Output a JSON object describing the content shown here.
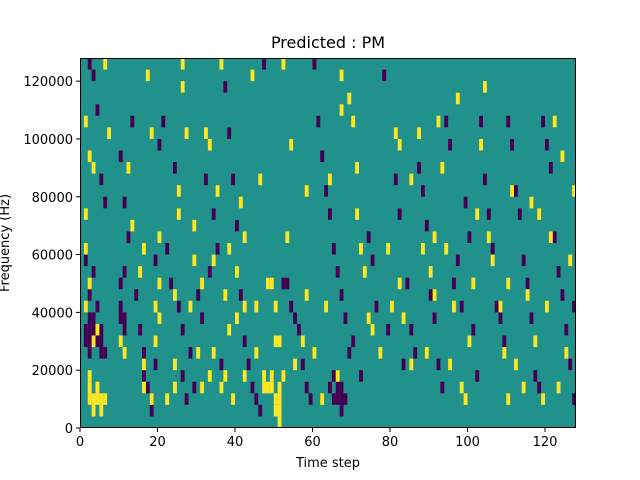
{
  "chart_data": {
    "type": "heatmap",
    "title": "Predicted : PM",
    "xlabel": "Time step",
    "ylabel": "Frequency (Hz)",
    "xlim": [
      0,
      128
    ],
    "ylim": [
      0,
      128000
    ],
    "x_ticks": [
      0,
      20,
      40,
      60,
      80,
      100,
      120
    ],
    "y_ticks": [
      0,
      20000,
      40000,
      60000,
      80000,
      100000,
      120000
    ],
    "x_tick_labels": [
      "0",
      "20",
      "40",
      "60",
      "80",
      "100",
      "120"
    ],
    "y_tick_labels": [
      "0",
      "20000",
      "40000",
      "60000",
      "80000",
      "100000",
      "120000"
    ],
    "grid": false,
    "colormap": "viridis",
    "background_value": 0.5,
    "cell_width": 1,
    "cell_height": 4000,
    "colors": {
      "low": "#440154",
      "mid": "#21918c",
      "high": "#fde725"
    },
    "cells_high": [
      [
        2,
        12000
      ],
      [
        2,
        8000
      ],
      [
        3,
        8000
      ],
      [
        3,
        4000
      ],
      [
        4,
        8000
      ],
      [
        4,
        12000
      ],
      [
        5,
        8000
      ],
      [
        5,
        4000
      ],
      [
        6,
        8000
      ],
      [
        2,
        16000
      ],
      [
        6,
        124000
      ],
      [
        7,
        100000
      ],
      [
        1,
        104000
      ],
      [
        2,
        92000
      ],
      [
        3,
        88000
      ],
      [
        1,
        72000
      ],
      [
        1,
        60000
      ],
      [
        2,
        48000
      ],
      [
        1,
        40000
      ],
      [
        3,
        28000
      ],
      [
        4,
        32000
      ],
      [
        10,
        28000
      ],
      [
        11,
        24000
      ],
      [
        12,
        88000
      ],
      [
        13,
        68000
      ],
      [
        15,
        52000
      ],
      [
        16,
        60000
      ],
      [
        16,
        20000
      ],
      [
        16,
        12000
      ],
      [
        17,
        120000
      ],
      [
        18,
        100000
      ],
      [
        18,
        8000
      ],
      [
        19,
        40000
      ],
      [
        19,
        28000
      ],
      [
        20,
        64000
      ],
      [
        20,
        48000
      ],
      [
        20,
        36000
      ],
      [
        22,
        8000
      ],
      [
        24,
        44000
      ],
      [
        24,
        20000
      ],
      [
        24,
        12000
      ],
      [
        25,
        80000
      ],
      [
        25,
        72000
      ],
      [
        26,
        124000
      ],
      [
        26,
        116000
      ],
      [
        27,
        100000
      ],
      [
        28,
        40000
      ],
      [
        29,
        68000
      ],
      [
        29,
        56000
      ],
      [
        30,
        24000
      ],
      [
        31,
        48000
      ],
      [
        31,
        12000
      ],
      [
        32,
        100000
      ],
      [
        33,
        96000
      ],
      [
        33,
        16000
      ],
      [
        34,
        56000
      ],
      [
        34,
        24000
      ],
      [
        35,
        80000
      ],
      [
        36,
        124000
      ],
      [
        36,
        12000
      ],
      [
        37,
        44000
      ],
      [
        37,
        16000
      ],
      [
        38,
        60000
      ],
      [
        38,
        32000
      ],
      [
        39,
        8000
      ],
      [
        40,
        52000
      ],
      [
        40,
        36000
      ],
      [
        41,
        76000
      ],
      [
        42,
        40000
      ],
      [
        42,
        64000
      ],
      [
        42,
        16000
      ],
      [
        44,
        120000
      ],
      [
        45,
        40000
      ],
      [
        45,
        24000
      ],
      [
        46,
        84000
      ],
      [
        47,
        12000
      ],
      [
        47,
        16000
      ],
      [
        48,
        48000
      ],
      [
        48,
        12000
      ],
      [
        49,
        48000
      ],
      [
        49,
        12000
      ],
      [
        49,
        16000
      ],
      [
        50,
        40000
      ],
      [
        50,
        28000
      ],
      [
        50,
        8000
      ],
      [
        50,
        4000
      ],
      [
        51,
        28000
      ],
      [
        51,
        12000
      ],
      [
        51,
        8000
      ],
      [
        51,
        4000
      ],
      [
        51,
        0
      ],
      [
        52,
        124000
      ],
      [
        52,
        16000
      ],
      [
        53,
        64000
      ],
      [
        54,
        96000
      ],
      [
        55,
        20000
      ],
      [
        57,
        28000
      ],
      [
        58,
        80000
      ],
      [
        58,
        44000
      ],
      [
        60,
        24000
      ],
      [
        62,
        8000
      ],
      [
        63,
        40000
      ],
      [
        64,
        84000
      ],
      [
        66,
        16000
      ],
      [
        67,
        120000
      ],
      [
        67,
        108000
      ],
      [
        69,
        112000
      ],
      [
        70,
        104000
      ],
      [
        71,
        88000
      ],
      [
        71,
        72000
      ],
      [
        72,
        60000
      ],
      [
        73,
        52000
      ],
      [
        74,
        36000
      ],
      [
        75,
        32000
      ],
      [
        77,
        24000
      ],
      [
        79,
        60000
      ],
      [
        80,
        40000
      ],
      [
        81,
        100000
      ],
      [
        82,
        96000
      ],
      [
        82,
        48000
      ],
      [
        83,
        36000
      ],
      [
        85,
        20000
      ],
      [
        85,
        84000
      ],
      [
        87,
        100000
      ],
      [
        88,
        60000
      ],
      [
        89,
        24000
      ],
      [
        90,
        52000
      ],
      [
        91,
        64000
      ],
      [
        91,
        44000
      ],
      [
        92,
        104000
      ],
      [
        93,
        88000
      ],
      [
        94,
        60000
      ],
      [
        95,
        20000
      ],
      [
        96,
        40000
      ],
      [
        97,
        112000
      ],
      [
        98,
        12000
      ],
      [
        99,
        8000
      ],
      [
        100,
        28000
      ],
      [
        101,
        48000
      ],
      [
        102,
        72000
      ],
      [
        103,
        96000
      ],
      [
        104,
        116000
      ],
      [
        105,
        64000
      ],
      [
        106,
        56000
      ],
      [
        108,
        40000
      ],
      [
        109,
        24000
      ],
      [
        110,
        8000
      ],
      [
        110,
        48000
      ],
      [
        111,
        80000
      ],
      [
        112,
        20000
      ],
      [
        114,
        12000
      ],
      [
        115,
        44000
      ],
      [
        116,
        76000
      ],
      [
        117,
        28000
      ],
      [
        118,
        72000
      ],
      [
        119,
        8000
      ],
      [
        120,
        40000
      ],
      [
        121,
        64000
      ],
      [
        122,
        104000
      ],
      [
        123,
        12000
      ],
      [
        124,
        92000
      ],
      [
        125,
        24000
      ],
      [
        126,
        56000
      ],
      [
        127,
        80000
      ]
    ],
    "cells_low": [
      [
        1,
        32000
      ],
      [
        1,
        28000
      ],
      [
        2,
        32000
      ],
      [
        2,
        28000
      ],
      [
        3,
        32000
      ],
      [
        3,
        28000
      ],
      [
        4,
        32000
      ],
      [
        4,
        28000
      ],
      [
        5,
        32000
      ],
      [
        5,
        28000
      ],
      [
        2,
        36000
      ],
      [
        3,
        36000
      ],
      [
        2,
        24000
      ],
      [
        5,
        24000
      ],
      [
        6,
        24000
      ],
      [
        2,
        124000
      ],
      [
        3,
        120000
      ],
      [
        4,
        108000
      ],
      [
        5,
        84000
      ],
      [
        6,
        76000
      ],
      [
        1,
        56000
      ],
      [
        3,
        52000
      ],
      [
        2,
        44000
      ],
      [
        4,
        40000
      ],
      [
        10,
        36000
      ],
      [
        10,
        40000
      ],
      [
        11,
        36000
      ],
      [
        11,
        32000
      ],
      [
        10,
        48000
      ],
      [
        11,
        52000
      ],
      [
        10,
        92000
      ],
      [
        11,
        76000
      ],
      [
        12,
        64000
      ],
      [
        13,
        104000
      ],
      [
        14,
        44000
      ],
      [
        15,
        32000
      ],
      [
        16,
        24000
      ],
      [
        16,
        16000
      ],
      [
        17,
        12000
      ],
      [
        18,
        8000
      ],
      [
        18,
        4000
      ],
      [
        19,
        56000
      ],
      [
        19,
        20000
      ],
      [
        20,
        96000
      ],
      [
        21,
        104000
      ],
      [
        22,
        60000
      ],
      [
        23,
        48000
      ],
      [
        24,
        88000
      ],
      [
        25,
        40000
      ],
      [
        26,
        32000
      ],
      [
        26,
        16000
      ],
      [
        27,
        8000
      ],
      [
        28,
        24000
      ],
      [
        29,
        12000
      ],
      [
        30,
        44000
      ],
      [
        31,
        36000
      ],
      [
        32,
        84000
      ],
      [
        33,
        52000
      ],
      [
        34,
        72000
      ],
      [
        35,
        60000
      ],
      [
        36,
        20000
      ],
      [
        37,
        116000
      ],
      [
        38,
        100000
      ],
      [
        39,
        84000
      ],
      [
        40,
        68000
      ],
      [
        41,
        44000
      ],
      [
        42,
        28000
      ],
      [
        43,
        20000
      ],
      [
        44,
        12000
      ],
      [
        45,
        8000
      ],
      [
        46,
        4000
      ],
      [
        47,
        124000
      ],
      [
        48,
        48000
      ],
      [
        52,
        48000
      ],
      [
        53,
        48000
      ],
      [
        54,
        40000
      ],
      [
        55,
        36000
      ],
      [
        56,
        32000
      ],
      [
        57,
        20000
      ],
      [
        58,
        12000
      ],
      [
        59,
        8000
      ],
      [
        60,
        124000
      ],
      [
        61,
        104000
      ],
      [
        62,
        92000
      ],
      [
        63,
        80000
      ],
      [
        64,
        72000
      ],
      [
        65,
        60000
      ],
      [
        66,
        52000
      ],
      [
        67,
        44000
      ],
      [
        68,
        36000
      ],
      [
        64,
        12000
      ],
      [
        65,
        16000
      ],
      [
        65,
        8000
      ],
      [
        66,
        16000
      ],
      [
        66,
        12000
      ],
      [
        66,
        8000
      ],
      [
        67,
        12000
      ],
      [
        67,
        8000
      ],
      [
        67,
        4000
      ],
      [
        68,
        8000
      ],
      [
        69,
        24000
      ],
      [
        70,
        28000
      ],
      [
        72,
        16000
      ],
      [
        74,
        64000
      ],
      [
        75,
        56000
      ],
      [
        76,
        40000
      ],
      [
        78,
        120000
      ],
      [
        79,
        32000
      ],
      [
        81,
        84000
      ],
      [
        82,
        72000
      ],
      [
        83,
        20000
      ],
      [
        84,
        48000
      ],
      [
        85,
        32000
      ],
      [
        86,
        24000
      ],
      [
        87,
        88000
      ],
      [
        88,
        80000
      ],
      [
        89,
        68000
      ],
      [
        90,
        44000
      ],
      [
        91,
        36000
      ],
      [
        92,
        20000
      ],
      [
        93,
        12000
      ],
      [
        94,
        104000
      ],
      [
        95,
        96000
      ],
      [
        96,
        48000
      ],
      [
        97,
        56000
      ],
      [
        98,
        40000
      ],
      [
        99,
        76000
      ],
      [
        100,
        64000
      ],
      [
        101,
        32000
      ],
      [
        102,
        16000
      ],
      [
        103,
        104000
      ],
      [
        104,
        84000
      ],
      [
        105,
        72000
      ],
      [
        106,
        60000
      ],
      [
        107,
        40000
      ],
      [
        108,
        36000
      ],
      [
        109,
        28000
      ],
      [
        110,
        104000
      ],
      [
        111,
        96000
      ],
      [
        112,
        80000
      ],
      [
        113,
        72000
      ],
      [
        114,
        56000
      ],
      [
        115,
        48000
      ],
      [
        116,
        36000
      ],
      [
        117,
        16000
      ],
      [
        118,
        12000
      ],
      [
        119,
        104000
      ],
      [
        120,
        96000
      ],
      [
        121,
        88000
      ],
      [
        122,
        64000
      ],
      [
        123,
        52000
      ],
      [
        124,
        44000
      ],
      [
        125,
        32000
      ],
      [
        126,
        20000
      ],
      [
        127,
        40000
      ],
      [
        127,
        8000
      ]
    ]
  }
}
